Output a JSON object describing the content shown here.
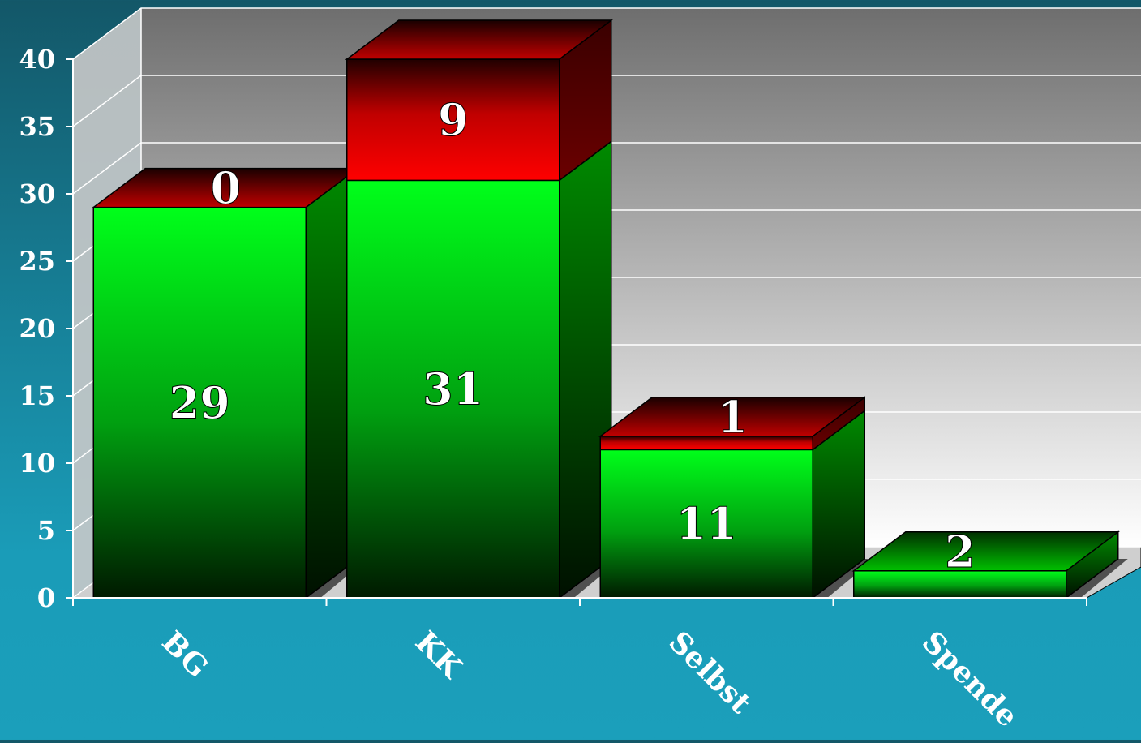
{
  "chart_data": {
    "type": "bar",
    "stacked": true,
    "three_d": true,
    "title": "",
    "xlabel": "",
    "ylabel": "",
    "categories": [
      "BG",
      "KK",
      "Selbst",
      "Spende"
    ],
    "series": [
      {
        "values": [
          29,
          31,
          11,
          2
        ],
        "color": "#00ff00"
      },
      {
        "values": [
          0,
          9,
          1,
          0
        ],
        "color": "#ff0000"
      }
    ],
    "data_labels": [
      [
        "29",
        "31",
        "11",
        "2"
      ],
      [
        "0",
        "9",
        "1",
        ""
      ]
    ],
    "ylim": [
      0,
      40
    ],
    "yticks": [
      "0",
      "5",
      "10",
      "15",
      "20",
      "25",
      "30",
      "35",
      "40"
    ],
    "grid": true,
    "legend": "none"
  }
}
